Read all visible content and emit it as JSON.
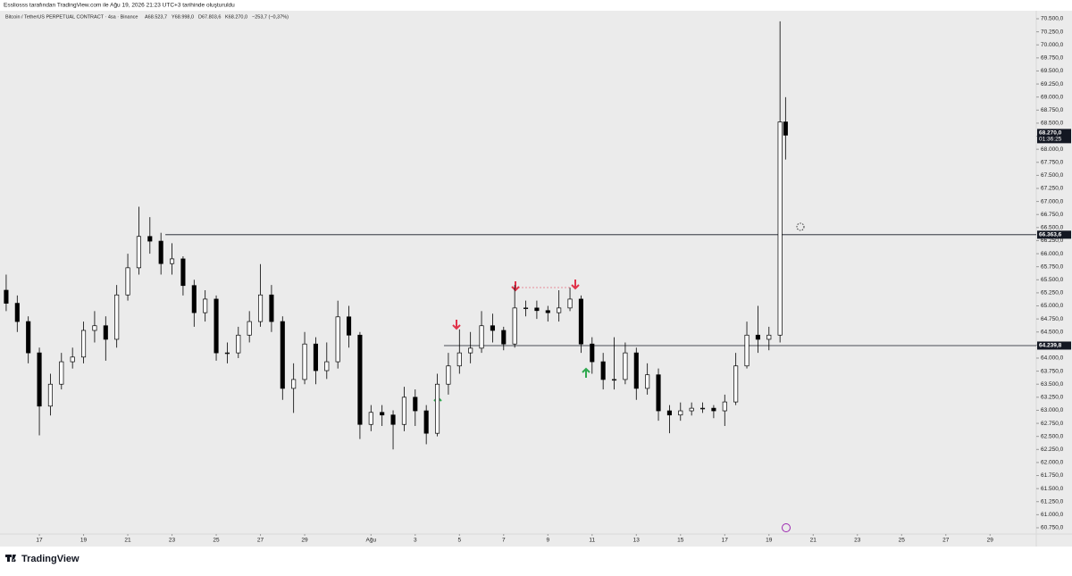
{
  "header": {
    "credit": "Essliosss tarafından TradingView.com ile Ağu 19, 2026 21:23 UTC+3 tarihinde oluşturuldu",
    "symbol": "Bitcoin / TetherUS PERPETUAL CONTRACT · 4sa · Binance",
    "ohlc": [
      "A68.523,7",
      "Y68.998,0",
      "D67.803,6",
      "K68.270,0"
    ],
    "change": "−253,7 (−0,37%)"
  },
  "chart_data": {
    "type": "candlestick",
    "x": [
      15.5,
      16,
      16.5,
      17,
      17.5,
      18,
      18.5,
      19,
      19.5,
      20,
      20.5,
      21,
      21.5,
      22,
      22.5,
      23,
      23.5,
      24,
      24.5,
      25,
      25.5,
      26,
      26.5,
      27,
      27.5,
      28,
      28.5,
      29,
      29.5,
      30,
      30.5,
      31,
      31.5,
      32,
      32.5,
      33,
      33.5,
      34,
      34.5,
      35,
      35.5,
      36,
      36.5,
      37,
      37.5,
      38,
      38.5,
      39,
      39.5,
      40,
      40.5,
      41,
      41.5,
      42,
      42.5,
      43,
      43.5,
      44,
      44.5,
      45,
      45.5,
      46,
      46.5,
      47,
      47.5,
      48,
      48.5,
      49,
      49.5,
      50,
      50.5,
      50.75
    ],
    "open": [
      65300,
      65050,
      64700,
      64100,
      63080,
      63500,
      63930,
      64020,
      64530,
      64620,
      64360,
      65210,
      65730,
      66330,
      66240,
      65810,
      65900,
      65390,
      64870,
      65130,
      64100,
      64100,
      64440,
      64700,
      65210,
      64700,
      63420,
      63590,
      64270,
      63760,
      63930,
      64790,
      64440,
      62730,
      62960,
      62910,
      62730,
      63250,
      62990,
      62560,
      63500,
      63850,
      64100,
      64190,
      64620,
      64530,
      64270,
      64960,
      64960,
      64910,
      64870,
      64960,
      65130,
      64270,
      63930,
      63590,
      63590,
      64100,
      63420,
      63680,
      62990,
      62910,
      62990,
      63040,
      63040,
      62990,
      63160,
      63850,
      64440,
      64360,
      64440,
      68523.7
    ],
    "high": [
      65600,
      65200,
      64800,
      64200,
      63700,
      64100,
      64200,
      64700,
      64900,
      64800,
      65400,
      66000,
      66900,
      66700,
      66400,
      66200,
      65950,
      65500,
      65300,
      65200,
      64300,
      64600,
      64900,
      65800,
      65400,
      64800,
      63900,
      64500,
      64400,
      64300,
      65100,
      65000,
      64500,
      63100,
      63100,
      63000,
      63450,
      63400,
      63100,
      63700,
      64100,
      64550,
      64500,
      64900,
      64850,
      64600,
      65400,
      65100,
      65100,
      65000,
      65300,
      65350,
      65200,
      64400,
      64100,
      64400,
      64300,
      64200,
      63900,
      63800,
      63100,
      63150,
      63150,
      63150,
      63100,
      63300,
      64100,
      64700,
      65000,
      64600,
      70450,
      68998
    ],
    "low": [
      64900,
      64500,
      63900,
      62520,
      62900,
      63400,
      63800,
      63900,
      64300,
      63950,
      64200,
      65100,
      65600,
      66000,
      65600,
      65600,
      65200,
      64600,
      64700,
      63950,
      63900,
      64000,
      64300,
      64600,
      64500,
      63200,
      62950,
      63500,
      63500,
      63600,
      63800,
      64200,
      62450,
      62600,
      62700,
      62250,
      62600,
      62700,
      62350,
      62500,
      63300,
      63700,
      63900,
      64100,
      64300,
      64150,
      64200,
      64800,
      64750,
      64700,
      64700,
      64900,
      64100,
      63700,
      63400,
      63400,
      63500,
      63200,
      63300,
      62800,
      62560,
      62800,
      62900,
      62950,
      62850,
      62700,
      63100,
      63800,
      64100,
      64150,
      64300,
      67803.6
    ],
    "close": [
      65050,
      64700,
      64100,
      63080,
      63500,
      63930,
      64020,
      64530,
      64620,
      64360,
      65210,
      65730,
      66330,
      66240,
      65810,
      65900,
      65390,
      64870,
      65130,
      64100,
      64100,
      64440,
      64700,
      65210,
      64700,
      63420,
      63590,
      64270,
      63760,
      63930,
      64790,
      64440,
      62730,
      62960,
      62910,
      62730,
      63250,
      62990,
      62560,
      63500,
      63850,
      64100,
      64190,
      64620,
      64530,
      64270,
      64960,
      64960,
      64910,
      64870,
      64960,
      65130,
      64270,
      63930,
      63590,
      63590,
      64100,
      63420,
      63680,
      62990,
      62910,
      62990,
      63040,
      63040,
      62990,
      63160,
      63850,
      64440,
      64360,
      64440,
      68523.7,
      68270
    ],
    "xlim": [
      15.22,
      62.09
    ],
    "xticks": [
      17,
      19,
      21,
      23,
      25,
      27,
      29,
      {
        "value": 32,
        "label": "Ağu"
      },
      {
        "value": 34,
        "label": "3"
      },
      {
        "value": 36,
        "label": "5"
      },
      {
        "value": 38,
        "label": "7"
      },
      {
        "value": 40,
        "label": "9"
      },
      {
        "value": 42,
        "label": "11"
      },
      {
        "value": 44,
        "label": "13"
      },
      {
        "value": 46,
        "label": "15"
      },
      {
        "value": 48,
        "label": "17"
      },
      {
        "value": 50,
        "label": "19"
      },
      {
        "value": 52,
        "label": "21"
      },
      {
        "value": 54,
        "label": "23"
      },
      {
        "value": 56,
        "label": "25"
      },
      {
        "value": 58,
        "label": "27"
      },
      {
        "value": 60,
        "label": "29"
      }
    ],
    "ylim": [
      60630,
      70654
    ],
    "yticks": [
      {
        "value": 70500,
        "label": "70.500,0"
      },
      {
        "value": 70250,
        "label": "70.250,0"
      },
      {
        "value": 70000,
        "label": "70.000,0"
      },
      {
        "value": 69750,
        "label": "69.750,0"
      },
      {
        "value": 69500,
        "label": "69.500,0"
      },
      {
        "value": 69250,
        "label": "69.250,0"
      },
      {
        "value": 69000,
        "label": "69.000,0"
      },
      {
        "value": 68750,
        "label": "68.750,0"
      },
      {
        "value": 68500,
        "label": "68.500,0"
      },
      {
        "value": 68250,
        "label": "68.250,0"
      },
      {
        "value": 68000,
        "label": "68.000,0"
      },
      {
        "value": 67750,
        "label": "67.750,0"
      },
      {
        "value": 67500,
        "label": "67.500,0"
      },
      {
        "value": 67250,
        "label": "67.250,0"
      },
      {
        "value": 67000,
        "label": "67.000,0"
      },
      {
        "value": 66750,
        "label": "66.750,0"
      },
      {
        "value": 66500,
        "label": "66.500,0"
      },
      {
        "value": 66250,
        "label": "66.250,0"
      },
      {
        "value": 66000,
        "label": "66.000,0"
      },
      {
        "value": 65750,
        "label": "65.750,0"
      },
      {
        "value": 65500,
        "label": "65.500,0"
      },
      {
        "value": 65250,
        "label": "65.250,0"
      },
      {
        "value": 65000,
        "label": "65.000,0"
      },
      {
        "value": 64750,
        "label": "64.750,0"
      },
      {
        "value": 64500,
        "label": "64.500,0"
      },
      {
        "value": 64250,
        "label": "64.250,0"
      },
      {
        "value": 64000,
        "label": "64.000,0"
      },
      {
        "value": 63750,
        "label": "63.750,0"
      },
      {
        "value": 63500,
        "label": "63.500,0"
      },
      {
        "value": 63250,
        "label": "63.250,0"
      },
      {
        "value": 63000,
        "label": "63.000,0"
      },
      {
        "value": 62750,
        "label": "62.750,0"
      },
      {
        "value": 62500,
        "label": "62.500,0"
      },
      {
        "value": 62250,
        "label": "62.250,0"
      },
      {
        "value": 62000,
        "label": "62.000,0"
      },
      {
        "value": 61750,
        "label": "61.750,0"
      },
      {
        "value": 61500,
        "label": "61.500,0"
      },
      {
        "value": 61250,
        "label": "61.250,0"
      },
      {
        "value": 61000,
        "label": "61.000,0"
      },
      {
        "value": 60750,
        "label": "60.750,0"
      }
    ],
    "levels": [
      {
        "value": 66363.6,
        "label": "66.363,6",
        "from": 22.7
      },
      {
        "value": 64239.8,
        "label": "64.239,8",
        "from": 35.3
      }
    ],
    "last_price": {
      "value": 68270,
      "label": "68.270,0",
      "countdown": "01:36:25"
    }
  },
  "footer": {
    "brand": "TradingView"
  }
}
